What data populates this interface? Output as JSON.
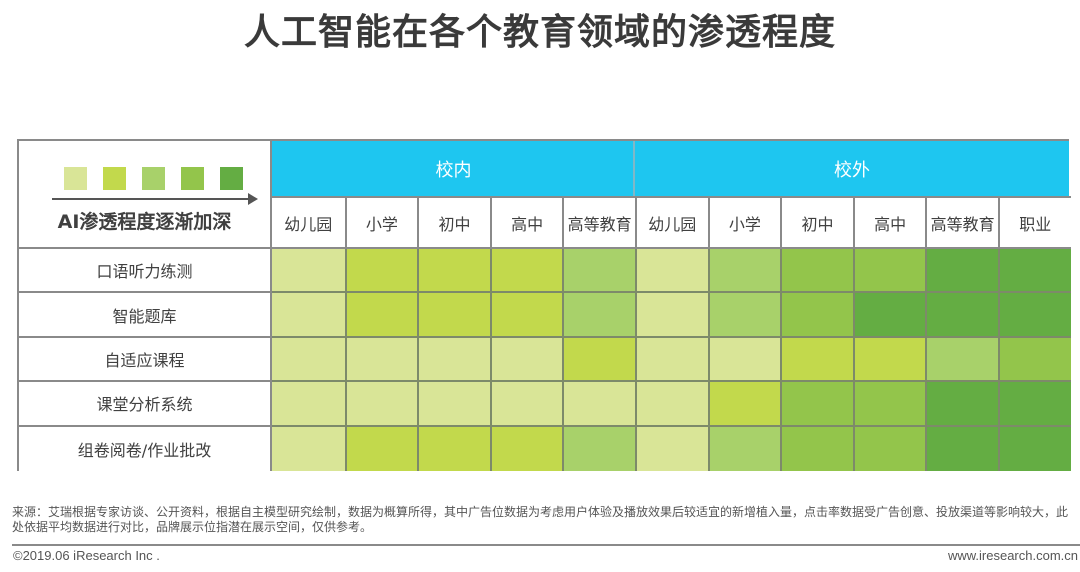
{
  "title": "人工智能在各个教育领域的渗透程度",
  "legend": {
    "label": "AI渗透程度逐渐加深",
    "levels": [
      {
        "level": 1,
        "color": "#d9e597"
      },
      {
        "level": 2,
        "color": "#c2d94c"
      },
      {
        "level": 3,
        "color": "#a8d16a"
      },
      {
        "level": 4,
        "color": "#93c54b"
      },
      {
        "level": 5,
        "color": "#64ad43"
      }
    ]
  },
  "groups": [
    {
      "label": "校内",
      "columns": [
        "幼儿园",
        "小学",
        "初中",
        "高中",
        "高等教育"
      ]
    },
    {
      "label": "校外",
      "columns": [
        "幼儿园",
        "小学",
        "初中",
        "高中",
        "高等教育",
        "职业"
      ]
    }
  ],
  "header_color": "#1ec6f0",
  "rows": [
    {
      "label": "口语听力练测",
      "levels": [
        1,
        2,
        2,
        2,
        3,
        1,
        3,
        4,
        4,
        5,
        5
      ]
    },
    {
      "label": "智能题库",
      "levels": [
        1,
        2,
        2,
        2,
        3,
        1,
        3,
        4,
        5,
        5,
        5
      ]
    },
    {
      "label": "自适应课程",
      "levels": [
        1,
        1,
        1,
        1,
        2,
        1,
        1,
        2,
        2,
        3,
        4
      ]
    },
    {
      "label": "课堂分析系统",
      "levels": [
        1,
        1,
        1,
        1,
        1,
        1,
        2,
        4,
        4,
        5,
        5
      ]
    },
    {
      "label": "组卷阅卷/作业批改",
      "levels": [
        1,
        2,
        2,
        2,
        3,
        1,
        3,
        4,
        4,
        5,
        5
      ]
    }
  ],
  "footer": {
    "source": "来源：艾瑞根据专家访谈、公开资料，根据自主模型研究绘制，数据为概算所得，其中广告位数据为考虑用户体验及播放效果后较适宜的新增植入量，点击率数据受广告创意、投放渠道等影响较大，此处依据平均数据进行对比，品牌展示位指潜在展示空间，仅供参考。",
    "copyright": "©2019.06 iResearch Inc .",
    "website": "www.iresearch.com.cn"
  },
  "chart_data": {
    "type": "heatmap",
    "title": "人工智能在各个教育领域的渗透程度",
    "x_groups": [
      {
        "name": "校内",
        "categories": [
          "幼儿园",
          "小学",
          "初中",
          "高中",
          "高等教育"
        ]
      },
      {
        "name": "校外",
        "categories": [
          "幼儿园",
          "小学",
          "初中",
          "高中",
          "高等教育",
          "职业"
        ]
      }
    ],
    "x": [
      "校内-幼儿园",
      "校内-小学",
      "校内-初中",
      "校内-高中",
      "校内-高等教育",
      "校外-幼儿园",
      "校外-小学",
      "校外-初中",
      "校外-高中",
      "校外-高等教育",
      "校外-职业"
    ],
    "y": [
      "口语听力练测",
      "智能题库",
      "自适应课程",
      "课堂分析系统",
      "组卷阅卷/作业批改"
    ],
    "values": [
      [
        1,
        2,
        2,
        2,
        3,
        1,
        3,
        4,
        4,
        5,
        5
      ],
      [
        1,
        2,
        2,
        2,
        3,
        1,
        3,
        4,
        5,
        5,
        5
      ],
      [
        1,
        1,
        1,
        1,
        2,
        1,
        1,
        2,
        2,
        3,
        4
      ],
      [
        1,
        1,
        1,
        1,
        1,
        1,
        2,
        4,
        4,
        5,
        5
      ],
      [
        1,
        2,
        2,
        2,
        3,
        1,
        3,
        4,
        4,
        5,
        5
      ]
    ],
    "scale": {
      "min": 1,
      "max": 5,
      "label": "AI渗透程度逐渐加深",
      "colors": [
        "#d9e597",
        "#c2d94c",
        "#a8d16a",
        "#93c54b",
        "#64ad43"
      ]
    },
    "xlabel": "",
    "ylabel": "",
    "legend_position": "top-left"
  }
}
